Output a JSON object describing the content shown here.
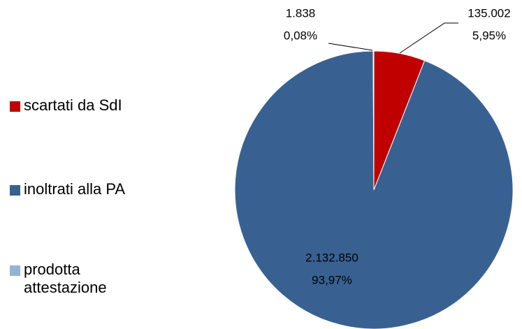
{
  "chart_data": {
    "type": "pie",
    "categories": [
      "scartati da SdI",
      "inoltrati alla PA",
      "prodotta attestazione"
    ],
    "values": [
      135002,
      2132850,
      1838
    ],
    "value_labels": [
      "135.002",
      "2.132.850",
      "1.838"
    ],
    "percentages": [
      5.95,
      93.97,
      0.08
    ],
    "percentage_labels": [
      "5,95%",
      "93,97%",
      "0,08%"
    ],
    "colors": [
      "#c00000",
      "#386192",
      "#95b3d7"
    ],
    "legend": "left"
  }
}
